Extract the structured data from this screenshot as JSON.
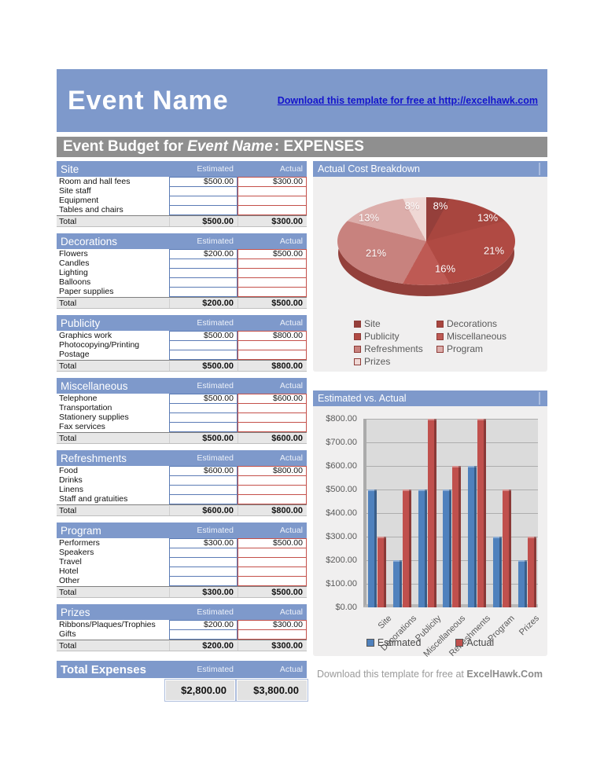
{
  "header": {
    "title": "Event Name",
    "link_text": "Download this template for free at http://excelhawk.com"
  },
  "subtitle": {
    "prefix": "Event Budget for ",
    "name": "Event Name",
    "suffix": ": EXPENSES"
  },
  "table": {
    "estimated_label": "Estimated",
    "actual_label": "Actual",
    "total_label": "Total"
  },
  "sections": [
    {
      "name": "Site",
      "rows": [
        {
          "label": "Room and hall fees",
          "estimated": "$500.00",
          "actual": "$300.00"
        },
        {
          "label": "Site staff",
          "estimated": "",
          "actual": ""
        },
        {
          "label": "Equipment",
          "estimated": "",
          "actual": ""
        },
        {
          "label": "Tables and chairs",
          "estimated": "",
          "actual": ""
        }
      ],
      "total_estimated": "$500.00",
      "total_actual": "$300.00"
    },
    {
      "name": "Decorations",
      "rows": [
        {
          "label": "Flowers",
          "estimated": "$200.00",
          "actual": "$500.00"
        },
        {
          "label": "Candles",
          "estimated": "",
          "actual": ""
        },
        {
          "label": "Lighting",
          "estimated": "",
          "actual": ""
        },
        {
          "label": "Balloons",
          "estimated": "",
          "actual": ""
        },
        {
          "label": "Paper supplies",
          "estimated": "",
          "actual": ""
        }
      ],
      "total_estimated": "$200.00",
      "total_actual": "$500.00"
    },
    {
      "name": "Publicity",
      "rows": [
        {
          "label": "Graphics work",
          "estimated": "$500.00",
          "actual": "$800.00"
        },
        {
          "label": "Photocopying/Printing",
          "estimated": "",
          "actual": ""
        },
        {
          "label": "Postage",
          "estimated": "",
          "actual": ""
        }
      ],
      "total_estimated": "$500.00",
      "total_actual": "$800.00"
    },
    {
      "name": "Miscellaneous",
      "rows": [
        {
          "label": "Telephone",
          "estimated": "$500.00",
          "actual": "$600.00"
        },
        {
          "label": "Transportation",
          "estimated": "",
          "actual": ""
        },
        {
          "label": "Stationery supplies",
          "estimated": "",
          "actual": ""
        },
        {
          "label": "Fax services",
          "estimated": "",
          "actual": ""
        }
      ],
      "total_estimated": "$500.00",
      "total_actual": "$600.00"
    },
    {
      "name": "Refreshments",
      "rows": [
        {
          "label": "Food",
          "estimated": "$600.00",
          "actual": "$800.00"
        },
        {
          "label": "Drinks",
          "estimated": "",
          "actual": ""
        },
        {
          "label": "Linens",
          "estimated": "",
          "actual": ""
        },
        {
          "label": "Staff and gratuities",
          "estimated": "",
          "actual": ""
        }
      ],
      "total_estimated": "$600.00",
      "total_actual": "$800.00"
    },
    {
      "name": "Program",
      "rows": [
        {
          "label": "Performers",
          "estimated": "$300.00",
          "actual": "$500.00"
        },
        {
          "label": "Speakers",
          "estimated": "",
          "actual": ""
        },
        {
          "label": "Travel",
          "estimated": "",
          "actual": ""
        },
        {
          "label": "Hotel",
          "estimated": "",
          "actual": ""
        },
        {
          "label": "Other",
          "estimated": "",
          "actual": ""
        }
      ],
      "total_estimated": "$300.00",
      "total_actual": "$500.00"
    },
    {
      "name": "Prizes",
      "rows": [
        {
          "label": "Ribbons/Plaques/Trophies",
          "estimated": "$200.00",
          "actual": "$300.00"
        },
        {
          "label": "Gifts",
          "estimated": "",
          "actual": ""
        }
      ],
      "total_estimated": "$200.00",
      "total_actual": "$300.00"
    }
  ],
  "total_expenses": {
    "label": "Total Expenses",
    "estimated": "$2,800.00",
    "actual": "$3,800.00"
  },
  "footer": {
    "text": "Download this template for free at ",
    "brand": "ExcelHawk.Com"
  },
  "colors": {
    "header_blue": "#7E99CB",
    "title_gray": "#8F8F8F",
    "estimated_border": "#5B7BB5",
    "actual_border": "#C4504A",
    "bar_estimated": "#4F81BD",
    "bar_actual": "#C0504D"
  },
  "chart_data": [
    {
      "type": "pie",
      "title": "Actual Cost Breakdown",
      "labels": [
        "Site",
        "Decorations",
        "Publicity",
        "Miscellaneous",
        "Refreshments",
        "Program",
        "Prizes"
      ],
      "values": [
        300,
        500,
        800,
        600,
        800,
        500,
        300
      ],
      "pct": [
        8,
        13,
        21,
        16,
        21,
        13,
        8
      ],
      "pct_labels": [
        "8%",
        "13%",
        "21%",
        "16%",
        "21%",
        "13%",
        "8%"
      ],
      "colors": [
        "#953F3B",
        "#A8463F",
        "#B04A43",
        "#BE5A54",
        "#C8827E",
        "#DCAEAB",
        "#EFD8D5"
      ],
      "legend_position": "bottom"
    },
    {
      "type": "bar",
      "title": "Estimated vs. Actual",
      "categories": [
        "Site",
        "Decorations",
        "Publicity",
        "Miscellaneous",
        "Refreshments",
        "Program",
        "Prizes"
      ],
      "series": [
        {
          "name": "Estimated",
          "color": "#4F81BD",
          "values": [
            500,
            200,
            500,
            500,
            600,
            300,
            200
          ]
        },
        {
          "name": "Actual",
          "color": "#C0504D",
          "values": [
            300,
            500,
            800,
            600,
            800,
            500,
            300
          ]
        }
      ],
      "ylim": [
        0,
        800
      ],
      "ytick_step": 100,
      "ytick_prefix": "$",
      "grid": true,
      "legend_position": "bottom"
    }
  ]
}
